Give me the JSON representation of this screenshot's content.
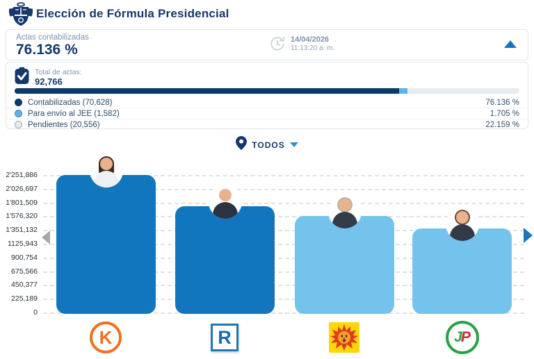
{
  "header": {
    "title": "Elección de Fórmula Presidencial",
    "logo_icon": "peru-coat-of-arms"
  },
  "summary": {
    "label": "Actas contabilizadas",
    "percent": "76.136 %",
    "date": "14/04/2026",
    "time": "11:13:20 a. m.",
    "clock_icon": "clock-refresh",
    "collapse_icon": "chevron-up",
    "accent_color": "#1c75bc"
  },
  "totals": {
    "icon": "clipboard-check",
    "label": "Total de actas:",
    "value": "92,766",
    "progress": [
      {
        "name": "Contabilizadas",
        "count": "70,628",
        "label": "Contabilizadas (70,628)",
        "percent_label": "76.136 %",
        "percent": 76.136,
        "color": "#0d3a66",
        "border": "#0d3a66"
      },
      {
        "name": "Para envío al JEE",
        "count": "1,582",
        "label": "Para envío al JEE (1,582)",
        "percent_label": "1.705 %",
        "percent": 1.705,
        "color": "#5fb4e5",
        "border": "#3f88c1"
      },
      {
        "name": "Pendientes",
        "count": "20,556",
        "label": "Pendientes (20,556)",
        "percent_label": "22.159 %",
        "percent": 22.159,
        "color": "#e8ecf0",
        "border": "#9aa7b0"
      }
    ]
  },
  "filter": {
    "pin_icon": "location-pin",
    "label": "TODOS",
    "caret_icon": "caret-down"
  },
  "chart_data": {
    "type": "bar",
    "title": "",
    "categories": [
      "K",
      "R",
      "sun",
      "JP"
    ],
    "values": [
      2251886,
      1740000,
      1580000,
      1375000
    ],
    "values_note": "bar 1 aligns with top gridline; bars 2-4 estimated from dashed gridlines",
    "ylim": [
      0,
      2251886
    ],
    "ytick_labels": [
      "0",
      "225,189",
      "450,377",
      "675,566",
      "900,754",
      "1125,943",
      "1'351,132",
      "1'576,320",
      "1'801,509",
      "2'026,697",
      "2'251,886"
    ],
    "grid": "dashed-horizontal",
    "legend_position": "none",
    "bar_colors": [
      "#1276bf",
      "#1276bf",
      "#74c3ed",
      "#74c3ed"
    ],
    "avatars": [
      {
        "desc": "woman-dark-hair-white-top",
        "hair": "#3a2a23",
        "hair_style": "long",
        "shirt": "#eef1f4"
      },
      {
        "desc": "bald-man-dark-suit",
        "hair": "none",
        "hair_style": "short",
        "shirt": "#2b3240"
      },
      {
        "desc": "gray-haired-man-dark-suit",
        "hair": "#b9b3a8",
        "hair_style": "short",
        "shirt": "#343c4a"
      },
      {
        "desc": "man-glasses-dark-suit",
        "hair": "#6b4a33",
        "hair_style": "short",
        "shirt": "#323a48"
      }
    ],
    "nav_arrows": {
      "left_color": "#a8a8a8",
      "right_color": "#1c75bc"
    }
  },
  "parties": [
    {
      "id": "fuerza-popular",
      "letter": "K",
      "color": "#f26f21"
    },
    {
      "id": "renovacion-popular",
      "letter": "R",
      "color": "#1b6cab"
    },
    {
      "id": "sun-party",
      "letter": "",
      "color": "#e03c1a"
    },
    {
      "id": "juntos-por-el-peru",
      "letter_j": "J",
      "letter_p": "P",
      "j_color": "#2aa146",
      "p_color": "#d22630"
    }
  ]
}
